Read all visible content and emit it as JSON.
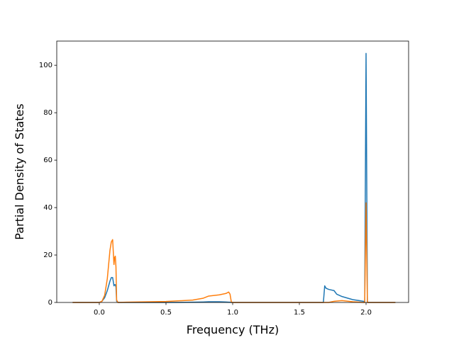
{
  "chart_data": {
    "type": "line",
    "x_label": "Frequency (THz)",
    "y_label": "Partial Density of States",
    "x": [
      -0.2,
      0.0,
      0.02,
      0.04,
      0.06,
      0.08,
      0.09,
      0.1,
      0.11,
      0.115,
      0.12,
      0.125,
      0.13,
      0.14,
      0.2,
      0.5,
      0.7,
      0.78,
      0.82,
      0.9,
      0.95,
      0.97,
      0.98,
      0.99,
      1.0,
      1.68,
      1.69,
      1.7,
      1.72,
      1.76,
      1.78,
      1.82,
      1.9,
      1.98,
      1.99,
      2.0,
      2.01,
      2.02,
      2.22
    ],
    "series": [
      {
        "color": "#1f77b4",
        "values": [
          0,
          0,
          0.5,
          2,
          5,
          9,
          10.5,
          10.5,
          7,
          7.5,
          7.5,
          6.5,
          0.5,
          0,
          0,
          0,
          0.1,
          0.2,
          0.3,
          0.3,
          0.2,
          0.1,
          0.1,
          0,
          0,
          0,
          7,
          6,
          5.5,
          5,
          3.5,
          2.5,
          1.2,
          0.5,
          0.3,
          105,
          0,
          0,
          0
        ]
      },
      {
        "color": "#ff7f0e",
        "values": [
          0,
          0,
          0.5,
          3,
          10,
          22,
          25.5,
          26.5,
          16,
          19,
          19.5,
          15,
          1,
          0,
          0.1,
          0.4,
          1,
          1.8,
          2.7,
          3.2,
          3.8,
          4.4,
          3.5,
          0.2,
          0,
          0,
          0,
          0,
          0,
          0.5,
          0.6,
          0.8,
          0.3,
          0,
          0,
          42,
          0,
          0,
          0
        ]
      }
    ],
    "xlim": [
      -0.319,
      2.319
    ],
    "xticks": [
      {
        "value": 0,
        "label": "0.0"
      },
      0.5,
      {
        "value": 1,
        "label": "1.0"
      },
      1.5,
      {
        "value": 2,
        "label": "2.0"
      }
    ],
    "ylim": [
      0,
      110.2
    ],
    "yticks": [
      0,
      20,
      40,
      60,
      80,
      100
    ],
    "grid": false
  }
}
